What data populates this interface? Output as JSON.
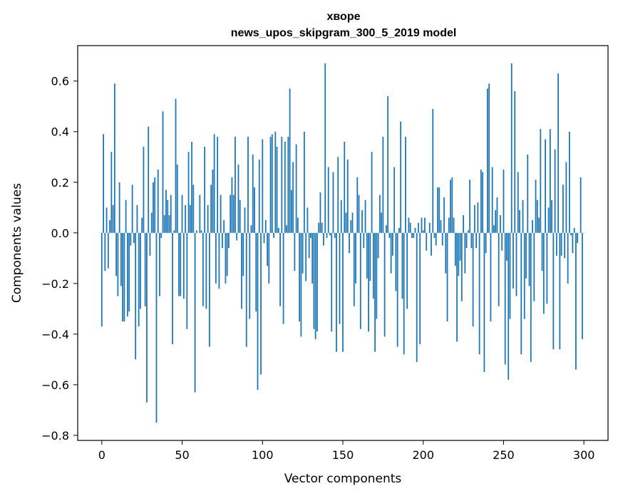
{
  "chart_data": {
    "type": "bar",
    "title": "хворе",
    "subtitle": "news_upos_skipgram_300_5_2019 model",
    "xlabel": "Vector components",
    "ylabel": "Components values",
    "xlim": [
      -15,
      315
    ],
    "ylim": [
      -0.82,
      0.74
    ],
    "xticks": [
      0,
      50,
      100,
      150,
      200,
      250,
      300
    ],
    "yticks": [
      -0.8,
      -0.6,
      -0.4,
      -0.2,
      0.0,
      0.2,
      0.4,
      0.6
    ],
    "ytick_labels": [
      "−0.8",
      "−0.6",
      "−0.4",
      "−0.2",
      "0.0",
      "0.2",
      "0.4",
      "0.6"
    ],
    "bar_color": "#1f77b4",
    "x_start": 0,
    "values": [
      -0.37,
      0.39,
      -0.15,
      0.1,
      -0.14,
      0.05,
      0.32,
      0.11,
      0.59,
      -0.17,
      -0.25,
      0.2,
      -0.21,
      -0.35,
      -0.35,
      0.13,
      -0.33,
      -0.31,
      -0.05,
      0.19,
      -0.04,
      -0.5,
      0.11,
      -0.37,
      -0.3,
      0.06,
      0.34,
      -0.29,
      -0.67,
      0.42,
      -0.09,
      0.08,
      0.2,
      0.22,
      -0.75,
      0.25,
      -0.25,
      -0.02,
      0.48,
      0.07,
      0.17,
      0.13,
      0.07,
      0.15,
      -0.44,
      0.01,
      0.53,
      0.27,
      -0.25,
      -0.25,
      0.15,
      -0.26,
      0.11,
      -0.38,
      0.32,
      0.11,
      0.36,
      0.19,
      -0.63,
      0.01,
      0.0,
      0.15,
      0.01,
      -0.29,
      0.34,
      -0.3,
      0.11,
      -0.45,
      0.19,
      0.25,
      0.39,
      -0.2,
      0.38,
      -0.22,
      0.15,
      -0.06,
      0.05,
      -0.2,
      -0.17,
      -0.06,
      0.15,
      0.22,
      0.15,
      0.38,
      -0.03,
      0.27,
      0.13,
      -0.3,
      -0.17,
      0.1,
      -0.45,
      0.38,
      -0.34,
      0.03,
      0.31,
      0.18,
      -0.31,
      -0.62,
      0.29,
      -0.56,
      0.37,
      -0.04,
      0.05,
      -0.13,
      -0.2,
      0.38,
      0.39,
      -0.02,
      0.4,
      0.34,
      0.02,
      -0.29,
      0.38,
      -0.36,
      0.36,
      0.03,
      0.38,
      0.57,
      0.17,
      0.28,
      -0.15,
      0.35,
      0.06,
      -0.35,
      -0.41,
      -0.16,
      0.4,
      -0.19,
      0.1,
      -0.1,
      -0.02,
      -0.2,
      -0.38,
      -0.42,
      -0.39,
      0.04,
      0.16,
      0.04,
      -0.05,
      0.67,
      -0.02,
      0.26,
      -0.01,
      -0.39,
      0.24,
      -0.02,
      -0.47,
      0.3,
      -0.36,
      0.13,
      -0.47,
      0.36,
      0.08,
      0.29,
      -0.08,
      0.05,
      0.08,
      -0.29,
      -0.2,
      0.22,
      0.15,
      -0.38,
      0.09,
      -0.06,
      0.13,
      -0.18,
      -0.39,
      -0.19,
      0.32,
      -0.26,
      -0.47,
      -0.34,
      -0.1,
      0.15,
      0.08,
      0.38,
      -0.41,
      0.03,
      0.54,
      -0.02,
      -0.16,
      -0.09,
      0.26,
      -0.23,
      -0.45,
      0.02,
      0.44,
      -0.26,
      -0.48,
      0.38,
      -0.3,
      0.06,
      0.04,
      -0.02,
      -0.02,
      0.02,
      -0.51,
      0.04,
      -0.44,
      0.06,
      0.01,
      0.06,
      -0.07,
      0.0,
      0.04,
      -0.09,
      0.49,
      -0.02,
      -0.05,
      0.18,
      0.18,
      0.05,
      -0.05,
      0.14,
      -0.16,
      -0.35,
      0.06,
      0.21,
      0.22,
      0.06,
      -0.13,
      -0.43,
      -0.17,
      -0.11,
      -0.27,
      0.07,
      -0.16,
      -0.06,
      0.01,
      0.21,
      -0.06,
      -0.37,
      0.11,
      -0.06,
      0.12,
      -0.48,
      0.25,
      0.24,
      -0.55,
      -0.08,
      0.57,
      0.59,
      -0.35,
      0.26,
      0.03,
      0.09,
      0.14,
      -0.29,
      0.07,
      -0.07,
      0.25,
      -0.52,
      -0.11,
      -0.58,
      -0.34,
      0.67,
      -0.22,
      0.56,
      -0.25,
      0.24,
      0.09,
      -0.48,
      0.13,
      -0.34,
      -0.18,
      0.31,
      -0.21,
      -0.51,
      0.05,
      -0.27,
      0.21,
      0.13,
      0.06,
      0.41,
      -0.15,
      -0.32,
      0.37,
      -0.28,
      0.1,
      0.41,
      0.13,
      -0.46,
      0.33,
      -0.09,
      0.63,
      -0.46,
      -0.09,
      0.19,
      -0.1,
      0.28,
      -0.2,
      0.4,
      -0.01,
      -0.08,
      0.02,
      -0.54,
      -0.04,
      0.0,
      0.22,
      -0.42,
      0.0
    ]
  }
}
